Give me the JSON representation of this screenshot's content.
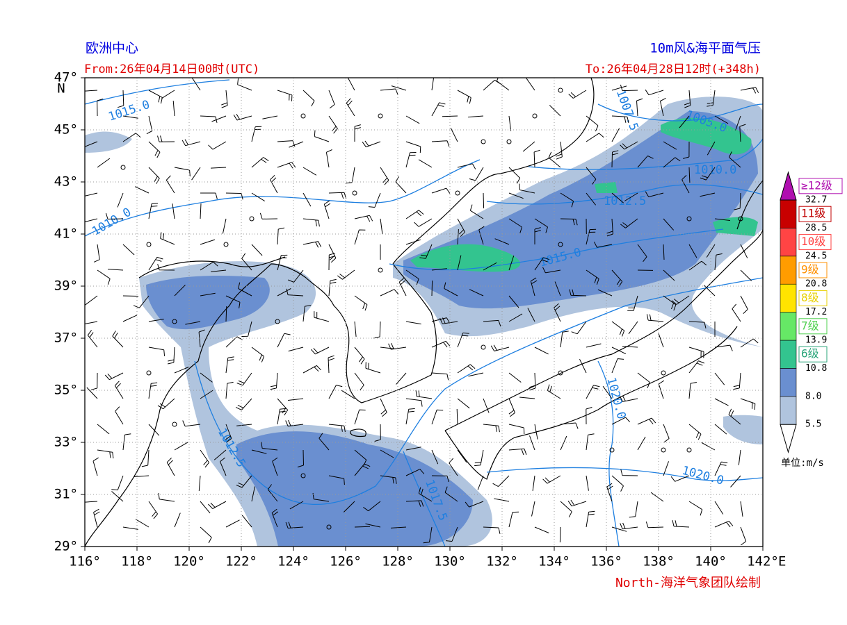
{
  "header": {
    "left_title": "欧洲中心",
    "right_title": "10m风&海平面气压",
    "from": "From:26年04月14日00时(UTC)",
    "to": "To:26年04月28日12时(+348h)"
  },
  "map": {
    "lon_range": [
      116,
      142
    ],
    "lat_range": [
      29,
      47
    ],
    "lon_ticks": [
      {
        "value": 116,
        "label": "116°"
      },
      {
        "value": 118,
        "label": "118°"
      },
      {
        "value": 120,
        "label": "120°"
      },
      {
        "value": 122,
        "label": "122°"
      },
      {
        "value": 124,
        "label": "124°"
      },
      {
        "value": 126,
        "label": "126°"
      },
      {
        "value": 128,
        "label": "128°"
      },
      {
        "value": 130,
        "label": "130°"
      },
      {
        "value": 132,
        "label": "132°"
      },
      {
        "value": 134,
        "label": "134°"
      },
      {
        "value": 136,
        "label": "136°"
      },
      {
        "value": 138,
        "label": "138°"
      },
      {
        "value": 140,
        "label": "140°"
      },
      {
        "value": 142,
        "label": "142°"
      }
    ],
    "lat_ticks": [
      {
        "value": 29,
        "label": "29°"
      },
      {
        "value": 31,
        "label": "31°"
      },
      {
        "value": 33,
        "label": "33°"
      },
      {
        "value": 35,
        "label": "35°"
      },
      {
        "value": 37,
        "label": "37°"
      },
      {
        "value": 39,
        "label": "39°"
      },
      {
        "value": 41,
        "label": "41°"
      },
      {
        "value": 43,
        "label": "43°"
      },
      {
        "value": 45,
        "label": "45°"
      },
      {
        "value": 47,
        "label": "47°"
      }
    ],
    "lon_suffix": "E",
    "lat_suffix": "N",
    "isobar_labels": [
      "1015.0",
      "1010.0",
      "1012.5",
      "1005.0",
      "1010.0",
      "1012.5",
      "1015.0",
      "1020.0",
      "1017.5",
      "1020.0",
      "1007.5"
    ]
  },
  "colorbar": {
    "levels": [
      "5.5",
      "8.0",
      "10.8",
      "13.9",
      "17.2",
      "20.8",
      "24.5",
      "28.5",
      "32.7"
    ],
    "colors": [
      "#b0c4de",
      "#6a8fd0",
      "#33c48f",
      "#66e866",
      "#ffe400",
      "#ff9c00",
      "#ff4444",
      "#c80000",
      "#b00fb0"
    ],
    "grades": [
      "6级",
      "7级",
      "8级",
      "9级",
      "10级",
      "11级",
      "≥12级"
    ],
    "grade_colors": [
      "#2aa57a",
      "#4fd04f",
      "#e8d000",
      "#ff9000",
      "#ff4040",
      "#c00000",
      "#b010b0"
    ],
    "unit": "单位:m/s"
  },
  "footer": {
    "credit": "North-海洋气象团队绘制"
  }
}
